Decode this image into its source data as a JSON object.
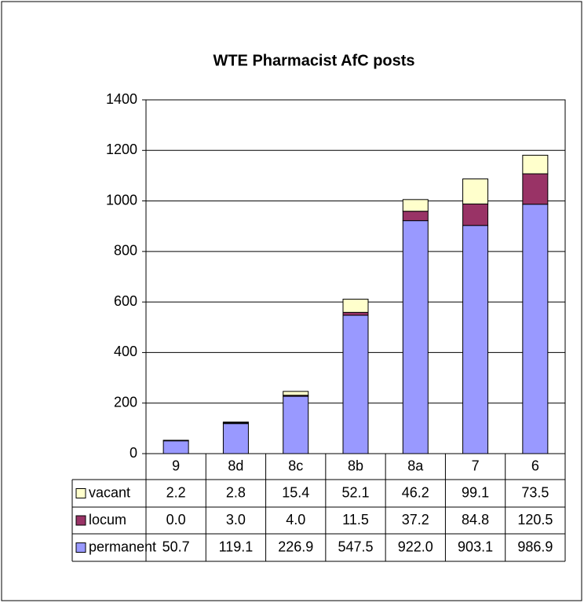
{
  "chart_data": {
    "type": "stacked_bar",
    "title": "WTE Pharmacist AfC posts",
    "categories": [
      "9",
      "8d",
      "8c",
      "8b",
      "8a",
      "7",
      "6"
    ],
    "series": [
      {
        "name": "vacant",
        "color": "#ffffcc",
        "values": [
          2.2,
          2.8,
          15.4,
          52.1,
          46.2,
          99.1,
          73.5
        ],
        "value_labels": [
          "2.2",
          "2.8",
          "15.4",
          "52.1",
          "46.2",
          "99.1",
          "73.5"
        ]
      },
      {
        "name": "locum",
        "color": "#993366",
        "values": [
          0.0,
          3.0,
          4.0,
          11.5,
          37.2,
          84.8,
          120.5
        ],
        "value_labels": [
          "0.0",
          "3.0",
          "4.0",
          "11.5",
          "37.2",
          "84.8",
          "120.5"
        ]
      },
      {
        "name": "permanent",
        "color": "#9999ff",
        "values": [
          50.7,
          119.1,
          226.9,
          547.5,
          922.0,
          903.1,
          986.9
        ],
        "value_labels": [
          "50.7",
          "119.1",
          "226.9",
          "547.5",
          "922.0",
          "903.1",
          "986.9"
        ]
      }
    ],
    "ylim": [
      0,
      1400
    ],
    "yticks": [
      0,
      200,
      400,
      600,
      800,
      1000,
      1200,
      1400
    ],
    "grid": true
  }
}
